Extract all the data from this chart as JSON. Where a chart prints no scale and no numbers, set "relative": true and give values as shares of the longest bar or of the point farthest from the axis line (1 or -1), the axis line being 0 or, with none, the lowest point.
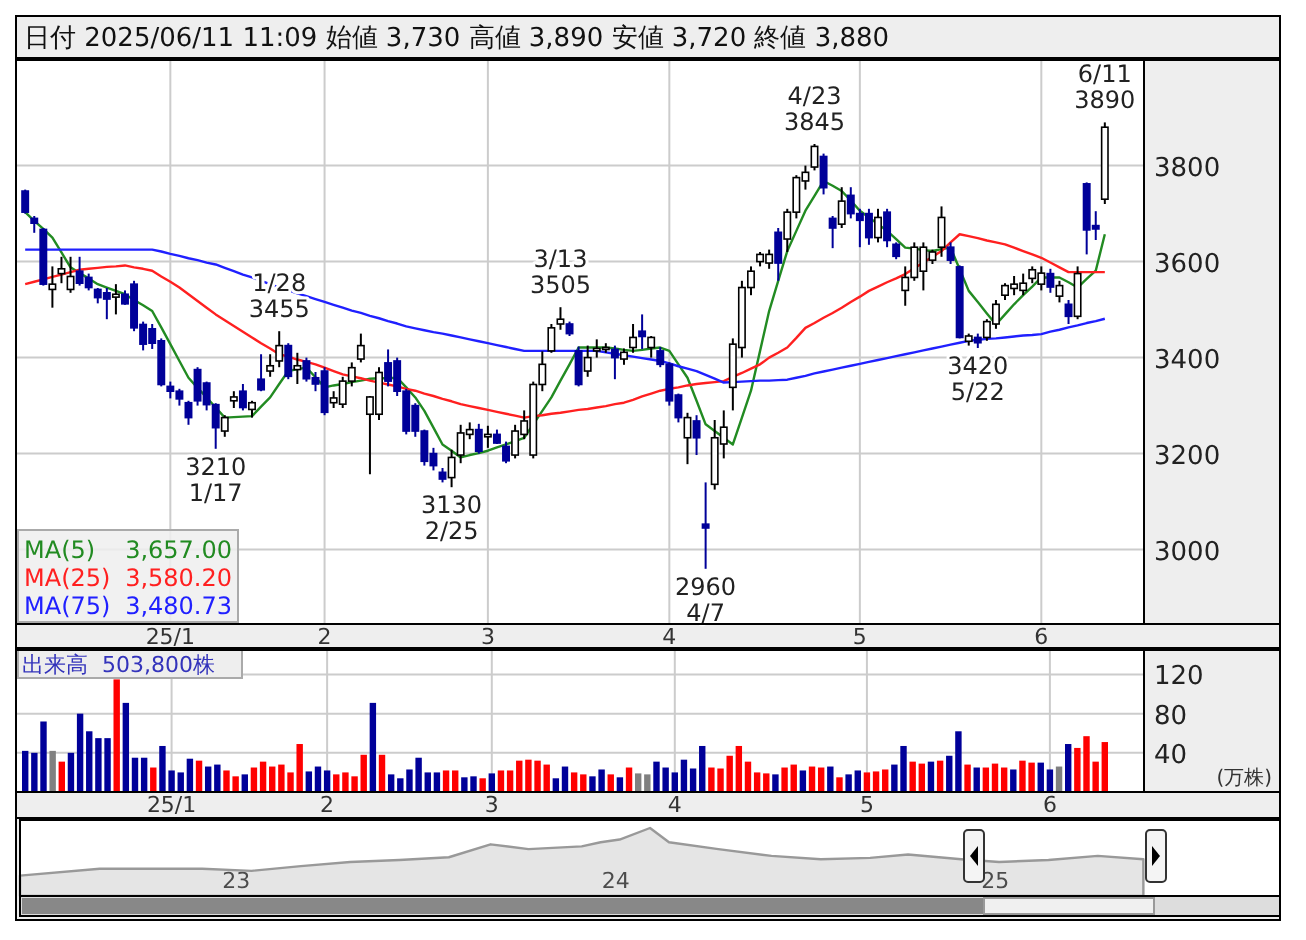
{
  "chart_data": [
    {
      "type": "candlestick",
      "title": "日付 2025/06/11 11:09 始値 3,730 高値 3,890 安値 3,720 終値 3,880",
      "categories": [
        null,
        null,
        null,
        null,
        null,
        null,
        null,
        null,
        null,
        null,
        null,
        null,
        null,
        null,
        null,
        null,
        "25/1",
        null,
        null,
        null,
        null,
        null,
        null,
        null,
        null,
        null,
        null,
        null,
        null,
        null,
        null,
        null,
        null,
        "2",
        null,
        null,
        null,
        null,
        null,
        null,
        null,
        null,
        null,
        null,
        null,
        null,
        null,
        null,
        null,
        null,
        null,
        "3",
        null,
        null,
        null,
        null,
        null,
        null,
        null,
        null,
        null,
        null,
        null,
        null,
        null,
        null,
        null,
        null,
        null,
        null,
        null,
        "4",
        null,
        null,
        null,
        null,
        null,
        null,
        null,
        null,
        null,
        null,
        null,
        null,
        null,
        null,
        null,
        null,
        null,
        null,
        null,
        null,
        "5",
        null,
        null,
        null,
        null,
        null,
        null,
        null,
        null,
        null,
        null,
        null,
        null,
        null,
        null,
        null,
        null,
        null,
        null,
        null,
        "6",
        null,
        null,
        null,
        null,
        null,
        null,
        null
      ],
      "ohlc": [
        [
          3747,
          3750,
          3700,
          3703
        ],
        [
          3690,
          3695,
          3660,
          3680
        ],
        [
          3667,
          3670,
          3550,
          3553
        ],
        [
          3542,
          3590,
          3504,
          3553
        ],
        [
          3575,
          3610,
          3555,
          3585
        ],
        [
          3542,
          3610,
          3535,
          3569
        ],
        [
          3580,
          3610,
          3550,
          3555
        ],
        [
          3567,
          3575,
          3540,
          3546
        ],
        [
          3542,
          3545,
          3513,
          3525
        ],
        [
          3535,
          3545,
          3480,
          3522
        ],
        [
          3526,
          3553,
          3490,
          3532
        ],
        [
          3532,
          3540,
          3510,
          3512
        ],
        [
          3553,
          3560,
          3455,
          3462
        ],
        [
          3469,
          3475,
          3415,
          3428
        ],
        [
          3460,
          3470,
          3418,
          3430
        ],
        [
          3435,
          3440,
          3340,
          3344
        ],
        [
          3340,
          3350,
          3315,
          3330
        ],
        [
          3330,
          3335,
          3300,
          3314
        ],
        [
          3306,
          3310,
          3260,
          3275
        ],
        [
          3375,
          3380,
          3300,
          3310
        ],
        [
          3347,
          3350,
          3290,
          3302
        ],
        [
          3302,
          3305,
          3210,
          3254
        ],
        [
          3247,
          3280,
          3235,
          3275
        ],
        [
          3310,
          3330,
          3295,
          3318
        ],
        [
          3330,
          3345,
          3290,
          3296
        ],
        [
          3292,
          3310,
          3275,
          3306
        ],
        [
          3355,
          3407,
          3330,
          3333
        ],
        [
          3372,
          3407,
          3360,
          3383
        ],
        [
          3393,
          3455,
          3380,
          3425
        ],
        [
          3425,
          3430,
          3355,
          3361
        ],
        [
          3375,
          3410,
          3345,
          3383
        ],
        [
          3393,
          3400,
          3350,
          3356
        ],
        [
          3358,
          3370,
          3330,
          3345
        ],
        [
          3372,
          3380,
          3280,
          3286
        ],
        [
          3306,
          3330,
          3295,
          3316
        ],
        [
          3303,
          3360,
          3295,
          3351
        ],
        [
          3351,
          3390,
          3340,
          3379
        ],
        [
          3397,
          3450,
          3390,
          3425
        ],
        [
          3282,
          3320,
          3157,
          3318
        ],
        [
          3282,
          3380,
          3270,
          3369
        ],
        [
          3389,
          3417,
          3340,
          3351
        ],
        [
          3393,
          3400,
          3320,
          3330
        ],
        [
          3330,
          3335,
          3240,
          3247
        ],
        [
          3300,
          3305,
          3235,
          3247
        ],
        [
          3247,
          3250,
          3175,
          3184
        ],
        [
          3200,
          3212,
          3165,
          3175
        ],
        [
          3161,
          3170,
          3140,
          3147
        ],
        [
          3150,
          3208,
          3130,
          3192
        ],
        [
          3197,
          3260,
          3180,
          3243
        ],
        [
          3240,
          3265,
          3230,
          3250
        ],
        [
          3250,
          3262,
          3200,
          3205
        ],
        [
          3235,
          3258,
          3212,
          3240
        ],
        [
          3240,
          3250,
          3220,
          3222
        ],
        [
          3215,
          3225,
          3180,
          3185
        ],
        [
          3197,
          3260,
          3190,
          3247
        ],
        [
          3240,
          3290,
          3230,
          3268
        ],
        [
          3197,
          3350,
          3190,
          3344
        ],
        [
          3344,
          3413,
          3330,
          3386
        ],
        [
          3414,
          3470,
          3410,
          3462
        ],
        [
          3470,
          3505,
          3458,
          3480
        ],
        [
          3470,
          3475,
          3445,
          3450
        ],
        [
          3414,
          3423,
          3340,
          3344
        ],
        [
          3372,
          3425,
          3360,
          3400
        ],
        [
          3414,
          3438,
          3400,
          3419
        ],
        [
          3419,
          3430,
          3410,
          3421
        ],
        [
          3417,
          3425,
          3355,
          3400
        ],
        [
          3397,
          3419,
          3385,
          3411
        ],
        [
          3421,
          3470,
          3410,
          3442
        ],
        [
          3455,
          3490,
          3418,
          3444
        ],
        [
          3421,
          3445,
          3400,
          3442
        ],
        [
          3414,
          3422,
          3380,
          3386
        ],
        [
          3386,
          3390,
          3300,
          3310
        ],
        [
          3322,
          3325,
          3265,
          3275
        ],
        [
          3233,
          3285,
          3178,
          3275
        ],
        [
          3268,
          3280,
          3197,
          3233
        ],
        [
          3053,
          3140,
          2960,
          3045
        ],
        [
          3136,
          3270,
          3125,
          3233
        ],
        [
          3220,
          3290,
          3190,
          3255
        ],
        [
          3338,
          3440,
          3290,
          3428
        ],
        [
          3421,
          3560,
          3400,
          3546
        ],
        [
          3546,
          3590,
          3530,
          3580
        ],
        [
          3600,
          3620,
          3590,
          3615
        ],
        [
          3597,
          3625,
          3585,
          3615
        ],
        [
          3661,
          3670,
          3560,
          3597
        ],
        [
          3647,
          3710,
          3620,
          3703
        ],
        [
          3703,
          3780,
          3690,
          3775
        ],
        [
          3768,
          3800,
          3750,
          3786
        ],
        [
          3797,
          3845,
          3790,
          3840
        ],
        [
          3819,
          3825,
          3740,
          3754
        ],
        [
          3690,
          3695,
          3628,
          3670
        ],
        [
          3678,
          3755,
          3670,
          3726
        ],
        [
          3738,
          3755,
          3690,
          3700
        ],
        [
          3700,
          3710,
          3630,
          3686
        ],
        [
          3700,
          3710,
          3635,
          3650
        ],
        [
          3650,
          3710,
          3640,
          3692
        ],
        [
          3703,
          3710,
          3630,
          3644
        ],
        [
          3636,
          3640,
          3605,
          3611
        ],
        [
          3540,
          3590,
          3508,
          3567
        ],
        [
          3567,
          3640,
          3560,
          3630
        ],
        [
          3580,
          3640,
          3540,
          3630
        ],
        [
          3603,
          3625,
          3595,
          3620
        ],
        [
          3630,
          3715,
          3610,
          3692
        ],
        [
          3630,
          3640,
          3595,
          3603
        ],
        [
          3589,
          3592,
          3440,
          3442
        ],
        [
          3434,
          3450,
          3425,
          3445
        ],
        [
          3442,
          3450,
          3420,
          3431
        ],
        [
          3442,
          3480,
          3435,
          3475
        ],
        [
          3470,
          3520,
          3460,
          3511
        ],
        [
          3530,
          3555,
          3520,
          3550
        ],
        [
          3544,
          3570,
          3530,
          3553
        ],
        [
          3540,
          3575,
          3530,
          3555
        ],
        [
          3565,
          3590,
          3555,
          3583
        ],
        [
          3553,
          3590,
          3540,
          3576
        ],
        [
          3575,
          3585,
          3535,
          3547
        ],
        [
          3528,
          3560,
          3515,
          3550
        ],
        [
          3511,
          3520,
          3470,
          3486
        ],
        [
          3486,
          3590,
          3480,
          3575
        ],
        [
          3762,
          3765,
          3615,
          3666
        ],
        [
          3675,
          3705,
          3645,
          3668
        ],
        [
          3730,
          3890,
          3720,
          3880
        ]
      ],
      "series": [
        {
          "name": "MA(5)",
          "type": "line",
          "color": "#228b22",
          "values": [
            3703,
            3685,
            3668,
            3650,
            3619,
            3588,
            3576,
            3565,
            3553,
            3546,
            3539,
            3532,
            3520,
            3509,
            3497,
            3463,
            3428,
            3393,
            3358,
            3337,
            3317,
            3296,
            3275,
            3276,
            3277,
            3278,
            3298,
            3317,
            3345,
            3372,
            3376,
            3379,
            3359,
            3338,
            3342,
            3345,
            3349,
            3352,
            3356,
            3357,
            3357,
            3358,
            3338,
            3317,
            3289,
            3254,
            3219,
            3206,
            3192,
            3197,
            3201,
            3206,
            3213,
            3219,
            3226,
            3233,
            3261,
            3289,
            3317,
            3352,
            3386,
            3421,
            3421,
            3421,
            3421,
            3419,
            3416,
            3414,
            3416,
            3419,
            3421,
            3414,
            3386,
            3358,
            3310,
            3261,
            3247,
            3233,
            3219,
            3275,
            3331,
            3414,
            3497,
            3560,
            3622,
            3664,
            3706,
            3737,
            3768,
            3758,
            3747,
            3727,
            3706,
            3692,
            3678,
            3664,
            3647,
            3629,
            3627,
            3624,
            3622,
            3626,
            3629,
            3584,
            3539,
            3516,
            3492,
            3469,
            3490,
            3511,
            3530,
            3548,
            3567,
            3567,
            3567,
            3557,
            3546,
            3564,
            3581,
            3657
          ]
        },
        {
          "name": "MA(25)",
          "type": "line",
          "color": "#ff2020",
          "values": [
            3553,
            3558,
            3563,
            3568,
            3573,
            3578,
            3583,
            3585,
            3587,
            3589,
            3590,
            3592,
            3588,
            3585,
            3581,
            3569,
            3558,
            3546,
            3532,
            3518,
            3504,
            3490,
            3478,
            3466,
            3454,
            3442,
            3430,
            3419,
            3407,
            3402,
            3396,
            3391,
            3386,
            3379,
            3372,
            3365,
            3361,
            3357,
            3352,
            3348,
            3344,
            3340,
            3335,
            3331,
            3325,
            3320,
            3314,
            3309,
            3303,
            3299,
            3295,
            3291,
            3287,
            3283,
            3279,
            3275,
            3278,
            3280,
            3283,
            3285,
            3288,
            3291,
            3293,
            3296,
            3299,
            3303,
            3306,
            3312,
            3319,
            3325,
            3331,
            3335,
            3338,
            3342,
            3345,
            3347,
            3349,
            3351,
            3360,
            3368,
            3377,
            3386,
            3400,
            3410,
            3421,
            3441,
            3462,
            3472,
            3483,
            3493,
            3504,
            3516,
            3527,
            3539,
            3548,
            3557,
            3565,
            3574,
            3586,
            3598,
            3610,
            3622,
            3640,
            3657,
            3653,
            3649,
            3644,
            3640,
            3636,
            3629,
            3622,
            3615,
            3608,
            3598,
            3588,
            3578,
            3578,
            3578,
            3578,
            3578
          ]
        },
        {
          "name": "MA(75)",
          "type": "line",
          "color": "#2020ff",
          "values": [
            3625,
            3625,
            3625,
            3625,
            3625,
            3625,
            3625,
            3625,
            3625,
            3625,
            3625,
            3625,
            3625,
            3625,
            3625,
            3621,
            3616,
            3612,
            3607,
            3603,
            3598,
            3594,
            3587,
            3580,
            3573,
            3567,
            3560,
            3553,
            3546,
            3540,
            3534,
            3528,
            3522,
            3516,
            3510,
            3504,
            3498,
            3493,
            3487,
            3482,
            3476,
            3471,
            3465,
            3461,
            3457,
            3453,
            3450,
            3446,
            3442,
            3438,
            3434,
            3430,
            3426,
            3422,
            3418,
            3414,
            3414,
            3414,
            3414,
            3414,
            3414,
            3414,
            3414,
            3414,
            3411,
            3408,
            3405,
            3402,
            3399,
            3396,
            3393,
            3388,
            3382,
            3377,
            3372,
            3364,
            3356,
            3348,
            3349,
            3350,
            3351,
            3352,
            3352,
            3353,
            3354,
            3358,
            3362,
            3367,
            3371,
            3375,
            3379,
            3383,
            3387,
            3391,
            3395,
            3399,
            3403,
            3407,
            3411,
            3415,
            3419,
            3423,
            3427,
            3431,
            3435,
            3437,
            3439,
            3440,
            3442,
            3444,
            3446,
            3447,
            3449,
            3454,
            3458,
            3463,
            3467,
            3472,
            3476,
            3481
          ]
        }
      ],
      "ylim": [
        2845,
        4020
      ],
      "yticks": [
        3000,
        3200,
        3400,
        3600,
        3800
      ],
      "grid": true,
      "legend": "bottom left",
      "annotations": [
        {
          "text": "3210\n1/17",
          "y": 3210
        },
        {
          "text": "1/28\n3455",
          "y": 3455
        },
        {
          "text": "3130\n2/25",
          "y": 3130
        },
        {
          "text": "3/13\n3505",
          "y": 3505
        },
        {
          "text": "2960\n4/7",
          "y": 2960
        },
        {
          "text": "4/23\n3845",
          "y": 3845
        },
        {
          "text": "3420\n5/22",
          "y": 3420
        },
        {
          "text": "6/11\n3890",
          "y": 3890
        },
        "3,657.00",
        "3,580.20",
        "3,480.73"
      ]
    },
    {
      "type": "bar",
      "title": "出来高  503,800株",
      "ylabel": "(万株)",
      "categories": [
        null,
        null,
        null,
        null,
        null,
        null,
        null,
        null,
        null,
        null,
        null,
        null,
        null,
        null,
        null,
        null,
        "25/1",
        null,
        null,
        null,
        null,
        null,
        null,
        null,
        null,
        null,
        null,
        null,
        null,
        null,
        null,
        null,
        null,
        "2",
        null,
        null,
        null,
        null,
        null,
        null,
        null,
        null,
        null,
        null,
        null,
        null,
        null,
        null,
        null,
        null,
        null,
        "3",
        null,
        null,
        null,
        null,
        null,
        null,
        null,
        null,
        null,
        null,
        null,
        null,
        null,
        null,
        null,
        null,
        null,
        null,
        null,
        "4",
        null,
        null,
        null,
        null,
        null,
        null,
        null,
        null,
        null,
        null,
        null,
        null,
        null,
        null,
        null,
        null,
        null,
        null,
        null,
        null,
        "5",
        null,
        null,
        null,
        null,
        null,
        null,
        null,
        null,
        null,
        null,
        null,
        null,
        null,
        null,
        null,
        null,
        null,
        null,
        null,
        "6",
        null,
        null,
        null,
        null,
        null,
        null
      ],
      "values": [
        42,
        40,
        72,
        42,
        31,
        40,
        80,
        62,
        55,
        55,
        115,
        91,
        35,
        35,
        25,
        47,
        22,
        20,
        34,
        32,
        26,
        28,
        22,
        16,
        18,
        25,
        31,
        26,
        28,
        20,
        49,
        21,
        26,
        22,
        18,
        20,
        16,
        38,
        91,
        38,
        18,
        14,
        23,
        35,
        20,
        20,
        22,
        22,
        15,
        16,
        14,
        19,
        22,
        22,
        32,
        33,
        32,
        28,
        14,
        26,
        20,
        18,
        16,
        23,
        18,
        15,
        25,
        19,
        18,
        31,
        25,
        20,
        33,
        24,
        47,
        25,
        24,
        37,
        47,
        31,
        20,
        19,
        18,
        25,
        28,
        22,
        26,
        25,
        26,
        15,
        18,
        22,
        20,
        21,
        23,
        28,
        47,
        31,
        29,
        31,
        32,
        37,
        62,
        28,
        25,
        25,
        29,
        25,
        23,
        32,
        30,
        30,
        23,
        26,
        49,
        45,
        57,
        31,
        51
      ],
      "colors": [
        "#000099",
        "#000099",
        "#000099",
        "#808080",
        "#ff0000",
        "#000099",
        "#000099",
        "#000099",
        "#000099",
        "#000099",
        "#ff0000",
        "#000099",
        "#000099",
        "#000099",
        "#ff0000",
        "#000099",
        "#000099",
        "#000099",
        "#000099",
        "#ff0000",
        "#000099",
        "#000099",
        "#ff0000",
        "#ff0000",
        "#000099",
        "#ff0000",
        "#ff0000",
        "#ff0000",
        "#ff0000",
        "#ff0000",
        "#ff0000",
        "#000099",
        "#000099",
        "#000099",
        "#ff0000",
        "#ff0000",
        "#ff0000",
        "#ff0000",
        "#000099",
        "#ff0000",
        "#000099",
        "#000099",
        "#000099",
        "#000099",
        "#000099",
        "#000099",
        "#ff0000",
        "#ff0000",
        "#000099",
        "#000099",
        "#ff0000",
        "#000099",
        "#ff0000",
        "#ff0000",
        "#ff0000",
        "#ff0000",
        "#ff0000",
        "#ff0000",
        "#000099",
        "#000099",
        "#ff0000",
        "#ff0000",
        "#000099",
        "#000099",
        "#ff0000",
        "#000099",
        "#ff0000",
        "#808080",
        "#808080",
        "#000099",
        "#000099",
        "#000099",
        "#000099",
        "#000099",
        "#000099",
        "#ff0000",
        "#ff0000",
        "#ff0000",
        "#ff0000",
        "#ff0000",
        "#ff0000",
        "#ff0000",
        "#000099",
        "#ff0000",
        "#ff0000",
        "#000099",
        "#ff0000",
        "#ff0000",
        "#000099",
        "#ff0000",
        "#000099",
        "#000099",
        "#ff0000",
        "#ff0000",
        "#ff0000",
        "#000099",
        "#000099",
        "#ff0000",
        "#ff0000",
        "#000099",
        "#ff0000",
        "#000099",
        "#000099",
        "#ff0000",
        "#000099",
        "#ff0000",
        "#ff0000",
        "#ff0000",
        "#000099",
        "#ff0000",
        "#ff0000",
        "#000099",
        "#000099",
        "#808080",
        "#000099",
        "#ff0000",
        "#ff0000",
        "#ff0000",
        "#ff0000"
      ],
      "ylim": [
        0,
        145
      ],
      "yticks": [
        40,
        80,
        120
      ],
      "grid": true
    },
    {
      "type": "area",
      "relative": true,
      "color": "#999999",
      "x": [
        22.43,
        22.64,
        22.91,
        23.04,
        23.17,
        23.3,
        23.43,
        23.56,
        23.67,
        23.77,
        23.91,
        23.96,
        24.01,
        24.09,
        24.14,
        24.27,
        24.41,
        24.54,
        24.67,
        24.77,
        24.91,
        25.01,
        25.14,
        25.27,
        25.39
      ],
      "values": [
        0.3,
        0.4,
        0.4,
        0.37,
        0.44,
        0.5,
        0.53,
        0.57,
        0.76,
        0.69,
        0.73,
        0.79,
        0.83,
        1,
        0.79,
        0.69,
        0.59,
        0.54,
        0.56,
        0.61,
        0.54,
        0.5,
        0.53,
        0.59,
        0.54
      ],
      "xlim": [
        22.43,
        25.75
      ],
      "xticks": [
        23,
        24,
        25
      ]
    }
  ]
}
